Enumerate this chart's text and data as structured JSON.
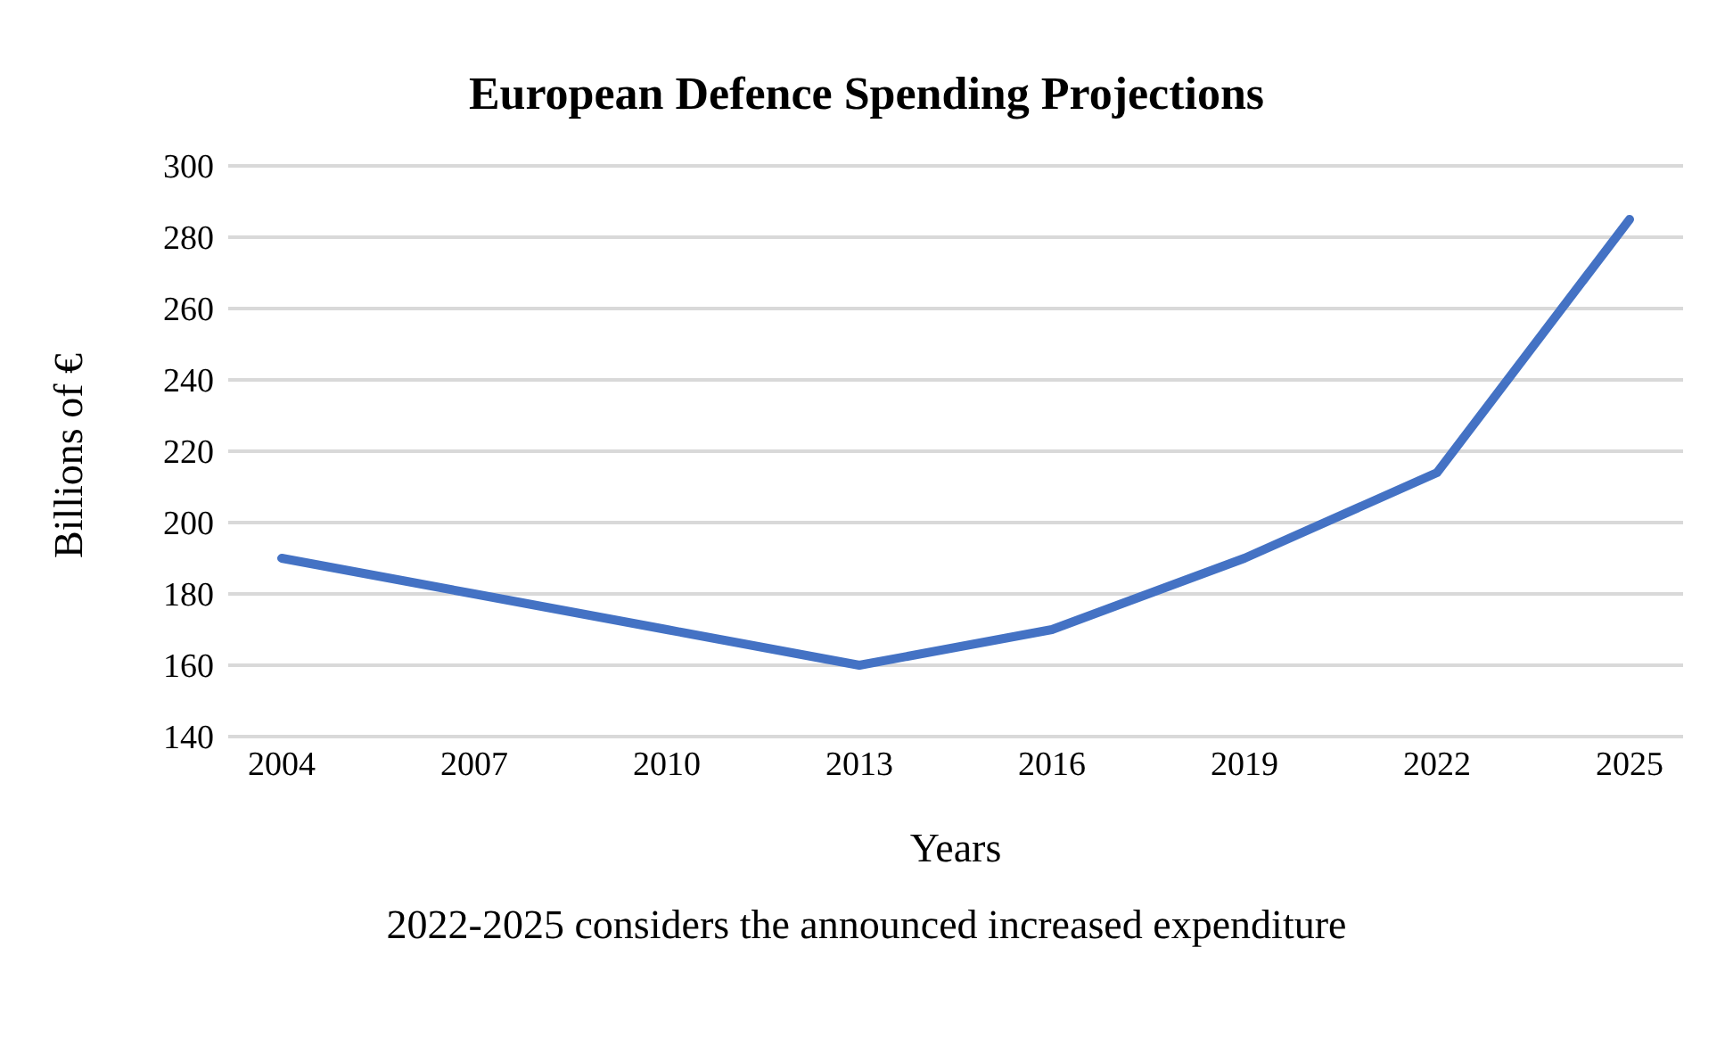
{
  "chart_data": {
    "type": "line",
    "title": "European Defence Spending Projections",
    "xlabel": "Years",
    "ylabel": "Billions of €",
    "categories": [
      "2004",
      "2007",
      "2010",
      "2013",
      "2016",
      "2019",
      "2022",
      "2025"
    ],
    "series": [
      {
        "color": "#4472c4",
        "values": [
          190,
          180,
          170,
          160,
          170,
          190,
          214,
          285
        ]
      }
    ],
    "ylim": [
      140,
      300
    ],
    "yticks": [
      140,
      160,
      180,
      200,
      220,
      240,
      260,
      280,
      300
    ],
    "grid": "y",
    "legend": false,
    "marker": "none",
    "line_style": "solid",
    "annotations": [
      "2022-2025 considers the announced increased expenditure"
    ]
  }
}
